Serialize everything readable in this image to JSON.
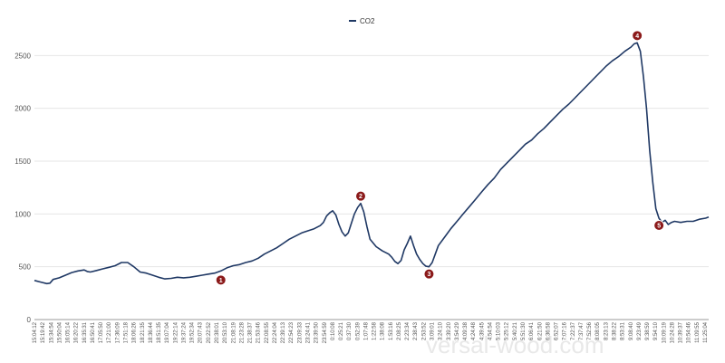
{
  "chart_data": {
    "type": "line",
    "title": "",
    "xlabel": "",
    "ylabel": "",
    "ylim": [
      0,
      2700
    ],
    "yticks": [
      0,
      500,
      1000,
      1500,
      2000,
      2500
    ],
    "grid": true,
    "legend_position": "top-center",
    "series": [
      {
        "name": "CO2",
        "color": "#1f3864",
        "values": [
          [
            0,
            370
          ],
          [
            2,
            355
          ],
          [
            4,
            340
          ],
          [
            5,
            345
          ],
          [
            6,
            380
          ],
          [
            8,
            395
          ],
          [
            10,
            420
          ],
          [
            12,
            445
          ],
          [
            14,
            460
          ],
          [
            16,
            470
          ],
          [
            17,
            455
          ],
          [
            18,
            450
          ],
          [
            20,
            465
          ],
          [
            22,
            480
          ],
          [
            24,
            495
          ],
          [
            26,
            510
          ],
          [
            28,
            540
          ],
          [
            30,
            540
          ],
          [
            32,
            500
          ],
          [
            34,
            450
          ],
          [
            36,
            440
          ],
          [
            38,
            420
          ],
          [
            40,
            400
          ],
          [
            42,
            385
          ],
          [
            44,
            390
          ],
          [
            46,
            400
          ],
          [
            48,
            395
          ],
          [
            50,
            400
          ],
          [
            52,
            410
          ],
          [
            54,
            420
          ],
          [
            56,
            430
          ],
          [
            58,
            440
          ],
          [
            60,
            460
          ],
          [
            62,
            490
          ],
          [
            64,
            510
          ],
          [
            66,
            520
          ],
          [
            68,
            540
          ],
          [
            70,
            555
          ],
          [
            72,
            580
          ],
          [
            74,
            620
          ],
          [
            76,
            650
          ],
          [
            78,
            680
          ],
          [
            80,
            720
          ],
          [
            82,
            760
          ],
          [
            84,
            790
          ],
          [
            86,
            820
          ],
          [
            88,
            840
          ],
          [
            90,
            860
          ],
          [
            92,
            890
          ],
          [
            93,
            920
          ],
          [
            94,
            980
          ],
          [
            95,
            1010
          ],
          [
            96,
            1030
          ],
          [
            97,
            990
          ],
          [
            98,
            900
          ],
          [
            99,
            830
          ],
          [
            100,
            790
          ],
          [
            101,
            820
          ],
          [
            102,
            910
          ],
          [
            103,
            1000
          ],
          [
            104,
            1060
          ],
          [
            105,
            1100
          ],
          [
            106,
            1020
          ],
          [
            107,
            880
          ],
          [
            108,
            760
          ],
          [
            110,
            690
          ],
          [
            112,
            650
          ],
          [
            114,
            620
          ],
          [
            115,
            590
          ],
          [
            116,
            550
          ],
          [
            117,
            530
          ],
          [
            118,
            560
          ],
          [
            119,
            660
          ],
          [
            120,
            720
          ],
          [
            121,
            790
          ],
          [
            122,
            700
          ],
          [
            123,
            620
          ],
          [
            124,
            570
          ],
          [
            125,
            530
          ],
          [
            126,
            505
          ],
          [
            127,
            500
          ],
          [
            128,
            540
          ],
          [
            129,
            620
          ],
          [
            130,
            700
          ],
          [
            132,
            780
          ],
          [
            134,
            860
          ],
          [
            136,
            930
          ],
          [
            138,
            1000
          ],
          [
            140,
            1070
          ],
          [
            142,
            1140
          ],
          [
            144,
            1210
          ],
          [
            146,
            1280
          ],
          [
            148,
            1340
          ],
          [
            150,
            1420
          ],
          [
            152,
            1480
          ],
          [
            154,
            1540
          ],
          [
            156,
            1600
          ],
          [
            158,
            1660
          ],
          [
            160,
            1700
          ],
          [
            162,
            1760
          ],
          [
            164,
            1810
          ],
          [
            166,
            1870
          ],
          [
            168,
            1930
          ],
          [
            170,
            1990
          ],
          [
            172,
            2040
          ],
          [
            174,
            2100
          ],
          [
            176,
            2160
          ],
          [
            178,
            2220
          ],
          [
            180,
            2280
          ],
          [
            182,
            2340
          ],
          [
            184,
            2400
          ],
          [
            186,
            2450
          ],
          [
            188,
            2490
          ],
          [
            190,
            2540
          ],
          [
            192,
            2580
          ],
          [
            193,
            2610
          ],
          [
            194,
            2620
          ],
          [
            195,
            2540
          ],
          [
            196,
            2300
          ],
          [
            197,
            2000
          ],
          [
            198,
            1600
          ],
          [
            199,
            1300
          ],
          [
            200,
            1050
          ],
          [
            201,
            960
          ],
          [
            202,
            920
          ],
          [
            203,
            940
          ],
          [
            204,
            900
          ],
          [
            205,
            920
          ],
          [
            206,
            930
          ],
          [
            208,
            920
          ],
          [
            210,
            930
          ],
          [
            212,
            930
          ],
          [
            214,
            950
          ],
          [
            216,
            960
          ],
          [
            217,
            970
          ]
        ]
      }
    ],
    "markers": [
      {
        "label": "1",
        "x": 60,
        "y": 460
      },
      {
        "label": "2",
        "x": 105,
        "y": 1100
      },
      {
        "label": "3",
        "x": 127,
        "y": 500
      },
      {
        "label": "4",
        "x": 194,
        "y": 2620
      },
      {
        "label": "5",
        "x": 201,
        "y": 960
      }
    ],
    "categories": [
      "15:04:12",
      "15:19:42",
      "15:34:54",
      "15:50:04",
      "16:05:14",
      "16:20:22",
      "16:35:31",
      "16:50:41",
      "17:05:50",
      "17:21:00",
      "17:36:09",
      "17:51:18",
      "18:06:26",
      "18:21:35",
      "18:36:44",
      "18:51:35",
      "19:07:04",
      "19:22:14",
      "19:37:24",
      "19:52:34",
      "20:07:43",
      "20:22:52",
      "20:38:01",
      "20:53:10",
      "21:08:19",
      "21:23:28",
      "21:38:37",
      "21:53:46",
      "22:08:55",
      "22:24:04",
      "22:39:13",
      "22:54:23",
      "23:09:33",
      "23:24:41",
      "23:39:50",
      "23:54:59",
      "0:10:08",
      "0:25:21",
      "0:37:30",
      "0:52:39",
      "1:07:48",
      "1:22:58",
      "1:38:08",
      "1:53:16",
      "2:08:25",
      "2:23:34",
      "2:38:43",
      "2:53:52",
      "3:09:01",
      "3:24:10",
      "3:39:20",
      "3:54:29",
      "4:09:38",
      "4:24:48",
      "4:39:45",
      "4:54:54",
      "5:10:03",
      "5:25:12",
      "5:40:21",
      "5:51:30",
      "6:06:41",
      "6:21:50",
      "6:36:58",
      "6:52:07",
      "7:07:16",
      "7:22:37",
      "7:37:47",
      "7:52:56",
      "8:08:05",
      "8:23:13",
      "8:38:22",
      "8:53:31",
      "9:08:40",
      "9:23:49",
      "9:38:59",
      "9:54:10",
      "10:09:19",
      "10:24:28",
      "10:39:37",
      "10:54:46",
      "11:09:55",
      "11:25:04"
    ],
    "x_index_max": 217
  }
}
